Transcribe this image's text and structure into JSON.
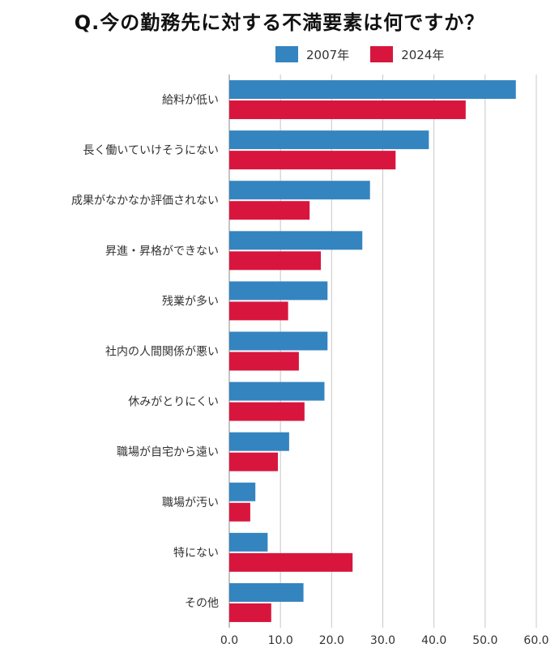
{
  "chart_data": {
    "type": "bar",
    "orientation": "horizontal",
    "title": "Q.今の勤務先に対する不満要素は何ですか？",
    "categories": [
      "給料が低い",
      "長く働いていけそうにない",
      "成果がなかなか評価されない",
      "昇進・昇格ができない",
      "残業が多い",
      "社内の人間関係が悪い",
      "休みがとりにくい",
      "職場が自宅から遠い",
      "職場が汚い",
      "特にない",
      "その他"
    ],
    "series": [
      {
        "name": "2007年",
        "color": "#3484c0",
        "values": [
          56.0,
          39.0,
          27.5,
          26.0,
          19.2,
          19.2,
          18.6,
          11.7,
          5.1,
          7.5,
          14.5
        ]
      },
      {
        "name": "2024年",
        "color": "#d8163d",
        "values": [
          46.2,
          32.5,
          15.7,
          17.9,
          11.5,
          13.6,
          14.7,
          9.5,
          4.1,
          24.1,
          8.2
        ]
      }
    ],
    "xlim": [
      0,
      60
    ],
    "xticks": [
      "0.0",
      "10.0",
      "20.0",
      "30.0",
      "40.0",
      "50.0",
      "60.0"
    ],
    "grid": true,
    "legend_position": "top-right"
  }
}
